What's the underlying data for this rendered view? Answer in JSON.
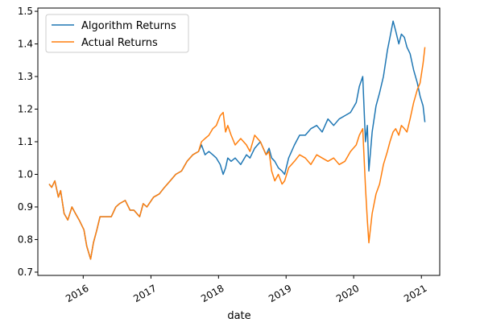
{
  "chart_data": {
    "type": "line",
    "title": "",
    "xlabel": "date",
    "ylabel": "",
    "xlim": [
      "2015-05-01",
      "2021-04-10"
    ],
    "ylim": [
      0.69,
      1.51
    ],
    "grid": false,
    "legend_position": "top-left",
    "x_ticks": [
      "2016",
      "2017",
      "2018",
      "2019",
      "2020",
      "2021"
    ],
    "y_ticks": [
      "0.7",
      "0.8",
      "0.9",
      "1.0",
      "1.1",
      "1.2",
      "1.3",
      "1.4",
      "1.5"
    ],
    "series": [
      {
        "name": "Algorithm Returns",
        "color": "#1f77b4",
        "x": [
          "2015-07-01",
          "2015-07-15",
          "2015-08-01",
          "2015-08-20",
          "2015-09-01",
          "2015-09-20",
          "2015-10-10",
          "2015-11-01",
          "2015-11-20",
          "2015-12-10",
          "2016-01-05",
          "2016-01-20",
          "2016-02-10",
          "2016-02-25",
          "2016-03-15",
          "2016-04-01",
          "2016-05-01",
          "2016-06-01",
          "2016-06-25",
          "2016-07-15",
          "2016-08-15",
          "2016-09-10",
          "2016-10-01",
          "2016-11-01",
          "2016-11-20",
          "2016-12-10",
          "2017-01-15",
          "2017-02-15",
          "2017-03-15",
          "2017-04-15",
          "2017-05-15",
          "2017-06-15",
          "2017-07-15",
          "2017-08-15",
          "2017-09-15",
          "2017-10-01",
          "2017-10-20",
          "2017-11-10",
          "2017-12-01",
          "2017-12-20",
          "2018-01-10",
          "2018-01-26",
          "2018-02-08",
          "2018-02-20",
          "2018-03-10",
          "2018-04-01",
          "2018-05-01",
          "2018-06-01",
          "2018-06-20",
          "2018-07-15",
          "2018-08-15",
          "2018-09-15",
          "2018-10-01",
          "2018-10-15",
          "2018-11-01",
          "2018-11-20",
          "2018-12-10",
          "2018-12-24",
          "2019-01-15",
          "2019-02-15",
          "2019-03-15",
          "2019-04-15",
          "2019-05-15",
          "2019-06-15",
          "2019-07-15",
          "2019-08-15",
          "2019-09-15",
          "2019-10-15",
          "2019-11-15",
          "2019-12-15",
          "2020-01-15",
          "2020-02-01",
          "2020-02-19",
          "2020-03-05",
          "2020-03-15",
          "2020-03-23",
          "2020-04-10",
          "2020-05-01",
          "2020-05-20",
          "2020-06-10",
          "2020-07-01",
          "2020-07-15",
          "2020-08-01",
          "2020-08-15",
          "2020-09-01",
          "2020-09-15",
          "2020-10-01",
          "2020-10-15",
          "2020-11-01",
          "2020-11-20",
          "2020-12-10",
          "2020-12-25",
          "2021-01-10",
          "2021-01-20"
        ],
        "values": [
          0.97,
          0.96,
          0.98,
          0.93,
          0.95,
          0.88,
          0.86,
          0.9,
          0.88,
          0.86,
          0.83,
          0.78,
          0.74,
          0.79,
          0.83,
          0.87,
          0.87,
          0.87,
          0.9,
          0.91,
          0.92,
          0.89,
          0.89,
          0.87,
          0.91,
          0.9,
          0.93,
          0.94,
          0.96,
          0.98,
          1.0,
          1.01,
          1.04,
          1.06,
          1.07,
          1.09,
          1.06,
          1.07,
          1.06,
          1.05,
          1.03,
          1.0,
          1.02,
          1.05,
          1.04,
          1.05,
          1.03,
          1.06,
          1.05,
          1.08,
          1.1,
          1.06,
          1.08,
          1.05,
          1.04,
          1.02,
          1.01,
          1.0,
          1.05,
          1.09,
          1.12,
          1.12,
          1.14,
          1.15,
          1.13,
          1.17,
          1.15,
          1.17,
          1.18,
          1.19,
          1.22,
          1.27,
          1.3,
          1.1,
          1.15,
          1.01,
          1.13,
          1.21,
          1.25,
          1.3,
          1.38,
          1.42,
          1.47,
          1.44,
          1.4,
          1.43,
          1.42,
          1.39,
          1.37,
          1.32,
          1.28,
          1.24,
          1.21,
          1.16
        ]
      },
      {
        "name": "Actual Returns",
        "color": "#ff7f0e",
        "x": [
          "2015-07-01",
          "2015-07-15",
          "2015-08-01",
          "2015-08-20",
          "2015-09-01",
          "2015-09-20",
          "2015-10-10",
          "2015-11-01",
          "2015-11-20",
          "2015-12-10",
          "2016-01-05",
          "2016-01-20",
          "2016-02-10",
          "2016-02-25",
          "2016-03-15",
          "2016-04-01",
          "2016-05-01",
          "2016-06-01",
          "2016-06-25",
          "2016-07-15",
          "2016-08-15",
          "2016-09-10",
          "2016-10-01",
          "2016-11-01",
          "2016-11-20",
          "2016-12-10",
          "2017-01-15",
          "2017-02-15",
          "2017-03-15",
          "2017-04-15",
          "2017-05-15",
          "2017-06-15",
          "2017-07-15",
          "2017-08-15",
          "2017-09-15",
          "2017-10-01",
          "2017-10-20",
          "2017-11-10",
          "2017-12-01",
          "2017-12-20",
          "2018-01-10",
          "2018-01-26",
          "2018-02-08",
          "2018-02-20",
          "2018-03-10",
          "2018-04-01",
          "2018-05-01",
          "2018-06-01",
          "2018-06-20",
          "2018-07-15",
          "2018-08-15",
          "2018-09-15",
          "2018-10-01",
          "2018-10-15",
          "2018-11-01",
          "2018-11-20",
          "2018-12-10",
          "2018-12-24",
          "2019-01-15",
          "2019-02-15",
          "2019-03-15",
          "2019-04-15",
          "2019-05-15",
          "2019-06-15",
          "2019-07-15",
          "2019-08-15",
          "2019-09-15",
          "2019-10-15",
          "2019-11-15",
          "2019-12-15",
          "2020-01-15",
          "2020-02-01",
          "2020-02-19",
          "2020-03-05",
          "2020-03-15",
          "2020-03-23",
          "2020-04-10",
          "2020-05-01",
          "2020-05-20",
          "2020-06-10",
          "2020-07-01",
          "2020-07-15",
          "2020-08-01",
          "2020-08-15",
          "2020-09-01",
          "2020-09-15",
          "2020-10-01",
          "2020-10-15",
          "2020-11-01",
          "2020-11-20",
          "2020-12-10",
          "2020-12-25",
          "2021-01-10",
          "2021-01-20"
        ],
        "values": [
          0.97,
          0.96,
          0.98,
          0.93,
          0.95,
          0.88,
          0.86,
          0.9,
          0.88,
          0.86,
          0.83,
          0.78,
          0.74,
          0.79,
          0.83,
          0.87,
          0.87,
          0.87,
          0.9,
          0.91,
          0.92,
          0.89,
          0.89,
          0.87,
          0.91,
          0.9,
          0.93,
          0.94,
          0.96,
          0.98,
          1.0,
          1.01,
          1.04,
          1.06,
          1.07,
          1.1,
          1.11,
          1.12,
          1.14,
          1.15,
          1.18,
          1.19,
          1.13,
          1.15,
          1.12,
          1.09,
          1.11,
          1.09,
          1.07,
          1.12,
          1.1,
          1.06,
          1.07,
          1.01,
          0.98,
          1.0,
          0.97,
          0.98,
          1.02,
          1.04,
          1.06,
          1.05,
          1.03,
          1.06,
          1.05,
          1.04,
          1.05,
          1.03,
          1.04,
          1.07,
          1.09,
          1.12,
          1.14,
          0.96,
          0.86,
          0.79,
          0.88,
          0.94,
          0.97,
          1.03,
          1.07,
          1.1,
          1.13,
          1.14,
          1.12,
          1.15,
          1.14,
          1.13,
          1.17,
          1.22,
          1.26,
          1.28,
          1.34,
          1.39
        ]
      }
    ]
  }
}
